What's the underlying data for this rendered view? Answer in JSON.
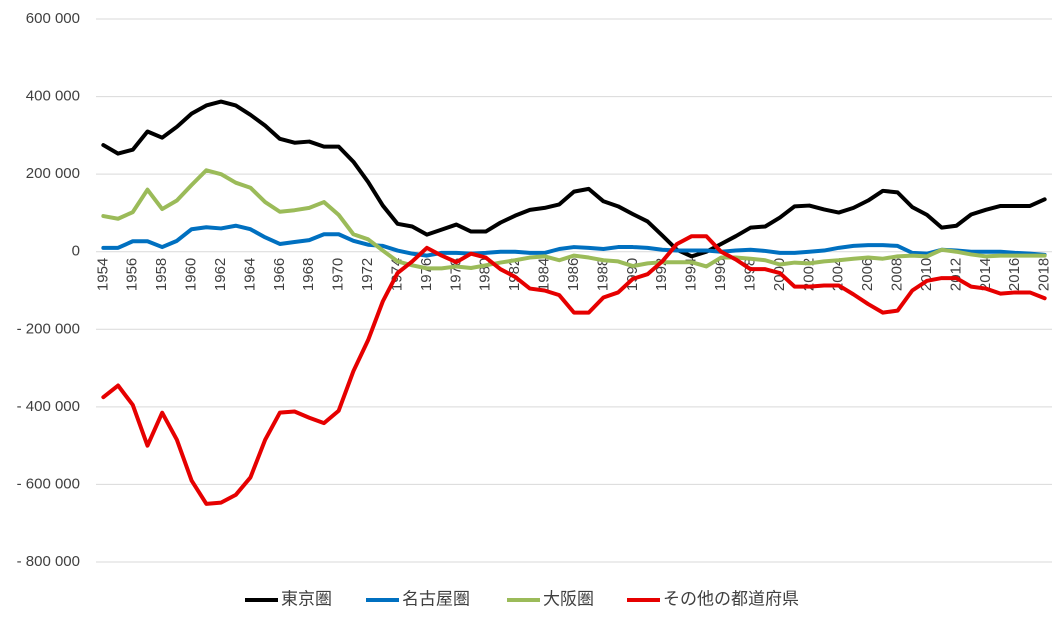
{
  "chart_data": {
    "type": "line",
    "x": [
      1954,
      1955,
      1956,
      1957,
      1958,
      1959,
      1960,
      1961,
      1962,
      1963,
      1964,
      1965,
      1966,
      1967,
      1968,
      1969,
      1970,
      1971,
      1972,
      1973,
      1974,
      1975,
      1976,
      1977,
      1978,
      1979,
      1980,
      1981,
      1982,
      1983,
      1984,
      1985,
      1986,
      1987,
      1988,
      1989,
      1990,
      1991,
      1992,
      1993,
      1994,
      1995,
      1996,
      1997,
      1998,
      1999,
      2000,
      2001,
      2002,
      2003,
      2004,
      2005,
      2006,
      2007,
      2008,
      2009,
      2010,
      2011,
      2012,
      2013,
      2014,
      2015,
      2016,
      2017,
      2018
    ],
    "xlim": [
      1953.5,
      2018.5
    ],
    "xticks": [
      1954,
      1956,
      1958,
      1960,
      1962,
      1964,
      1966,
      1968,
      1970,
      1972,
      1974,
      1976,
      1978,
      1980,
      1982,
      1984,
      1986,
      1988,
      1990,
      1992,
      1994,
      1996,
      1998,
      2000,
      2002,
      2004,
      2006,
      2008,
      2010,
      2012,
      2014,
      2016,
      2018
    ],
    "ylim": [
      -800000,
      600000
    ],
    "yticks": [
      {
        "value": -800000,
        "label": "- 800 000"
      },
      {
        "value": -600000,
        "label": "- 600 000"
      },
      {
        "value": -400000,
        "label": "- 400 000"
      },
      {
        "value": -200000,
        "label": "- 200 000"
      },
      0,
      {
        "value": 200000,
        "label": "200 000"
      },
      {
        "value": 400000,
        "label": "400 000"
      },
      {
        "value": 600000,
        "label": "600 000"
      }
    ],
    "grid": true,
    "legend": "bottom",
    "series": [
      {
        "name": "東京圏",
        "color": "#000000",
        "values": [
          275000,
          253000,
          263000,
          310000,
          294000,
          322000,
          356000,
          377000,
          387000,
          377000,
          353000,
          325000,
          291000,
          281000,
          284000,
          271000,
          271000,
          232000,
          180000,
          119000,
          72000,
          65000,
          44000,
          57000,
          70000,
          52000,
          52000,
          75000,
          93000,
          108000,
          113000,
          122000,
          155000,
          162000,
          130000,
          117000,
          97000,
          78000,
          42000,
          5000,
          -12000,
          0,
          20000,
          40000,
          62000,
          65000,
          88000,
          117000,
          119000,
          109000,
          101000,
          113000,
          132000,
          157000,
          153000,
          115000,
          95000,
          62000,
          67000,
          96000,
          108000,
          118000,
          118000,
          118000,
          135000
        ]
      },
      {
        "name": "名古屋圏",
        "color": "#0070c0",
        "values": [
          10000,
          10000,
          27000,
          27000,
          12000,
          28000,
          58000,
          63000,
          60000,
          67000,
          58000,
          37000,
          20000,
          25000,
          30000,
          45000,
          45000,
          28000,
          18000,
          15000,
          3000,
          -5000,
          -10000,
          -3000,
          -3000,
          -5000,
          -3000,
          0,
          0,
          -3000,
          -3000,
          7000,
          12000,
          10000,
          7000,
          12000,
          12000,
          10000,
          5000,
          3000,
          3000,
          3000,
          0,
          3000,
          5000,
          2000,
          -3000,
          -3000,
          0,
          3000,
          10000,
          15000,
          17000,
          17000,
          15000,
          -3000,
          -5000,
          5000,
          3000,
          0,
          0,
          0,
          -3000,
          -5000,
          -8000
        ]
      },
      {
        "name": "大阪圏",
        "color": "#9bbb59",
        "values": [
          92000,
          85000,
          102000,
          160000,
          110000,
          132000,
          172000,
          210000,
          200000,
          178000,
          165000,
          128000,
          103000,
          107000,
          113000,
          128000,
          95000,
          45000,
          32000,
          3000,
          -25000,
          -35000,
          -43000,
          -43000,
          -38000,
          -42000,
          -35000,
          -28000,
          -22000,
          -15000,
          -12000,
          -22000,
          -10000,
          -15000,
          -22000,
          -25000,
          -37000,
          -30000,
          -27000,
          -27000,
          -27000,
          -38000,
          -15000,
          -15000,
          -18000,
          -22000,
          -33000,
          -28000,
          -30000,
          -25000,
          -22000,
          -18000,
          -15000,
          -18000,
          -12000,
          -10000,
          -12000,
          5000,
          0,
          -7000,
          -12000,
          -10000,
          -10000,
          -10000,
          -10000
        ]
      },
      {
        "name": "その他の都道府県",
        "color": "#e60000",
        "values": [
          -375000,
          -345000,
          -395000,
          -500000,
          -415000,
          -485000,
          -590000,
          -650000,
          -647000,
          -627000,
          -582000,
          -485000,
          -415000,
          -412000,
          -428000,
          -442000,
          -410000,
          -308000,
          -228000,
          -128000,
          -55000,
          -25000,
          10000,
          -10000,
          -27000,
          -5000,
          -15000,
          -45000,
          -65000,
          -95000,
          -100000,
          -112000,
          -157000,
          -157000,
          -118000,
          -105000,
          -70000,
          -58000,
          -25000,
          20000,
          40000,
          40000,
          0,
          -20000,
          -45000,
          -45000,
          -55000,
          -90000,
          -90000,
          -87000,
          -87000,
          -110000,
          -135000,
          -157000,
          -152000,
          -100000,
          -75000,
          -68000,
          -68000,
          -90000,
          -95000,
          -108000,
          -105000,
          -105000,
          -120000
        ]
      }
    ]
  }
}
